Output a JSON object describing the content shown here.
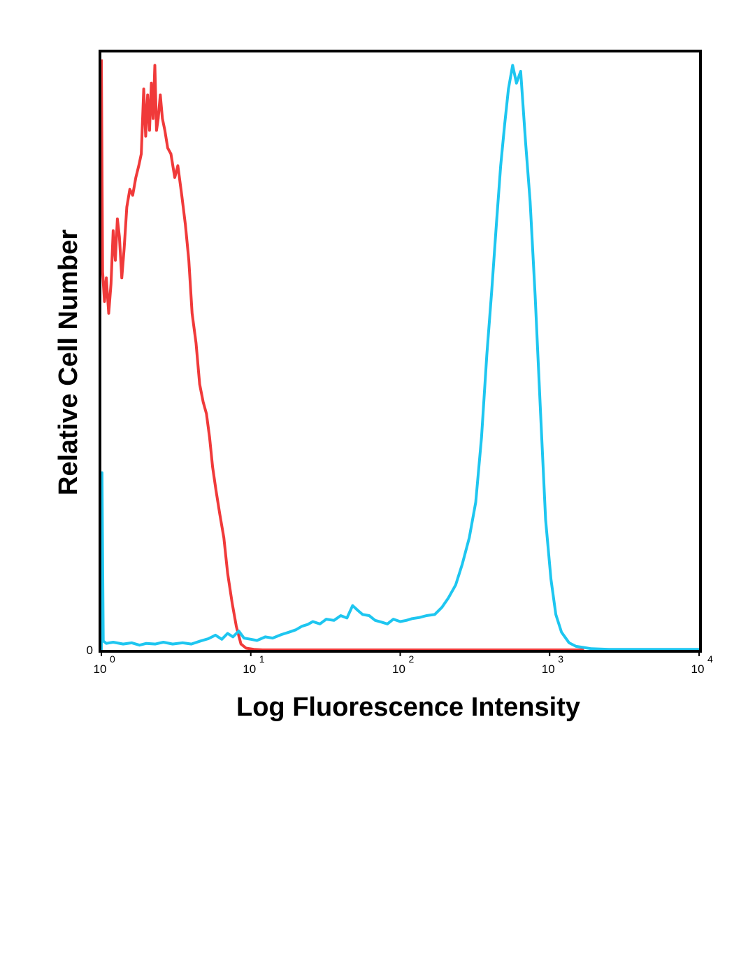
{
  "chart_data": {
    "type": "line",
    "title": "",
    "xlabel": "Log Fluorescence Intensity",
    "ylabel": "Relative Cell Number",
    "xscale": "log",
    "xlim": [
      1,
      10000
    ],
    "ylim": [
      0,
      100
    ],
    "grid": false,
    "legend": "none",
    "x_ticks": [
      {
        "base": "10",
        "exp": "0",
        "value": 1
      },
      {
        "base": "10",
        "exp": "1",
        "value": 10
      },
      {
        "base": "10",
        "exp": "2",
        "value": 100
      },
      {
        "base": "10",
        "exp": "3",
        "value": 1000
      },
      {
        "base": "10",
        "exp": "4",
        "value": 10000
      }
    ],
    "y_ticks": [
      {
        "label": "0",
        "value": 0
      }
    ],
    "series": [
      {
        "color": "#f03a3a",
        "points": [
          [
            1.0,
            100
          ],
          [
            1.02,
            64
          ],
          [
            1.05,
            59
          ],
          [
            1.08,
            63
          ],
          [
            1.12,
            57
          ],
          [
            1.16,
            62
          ],
          [
            1.2,
            71
          ],
          [
            1.24,
            66
          ],
          [
            1.28,
            73
          ],
          [
            1.32,
            70
          ],
          [
            1.37,
            63
          ],
          [
            1.42,
            68
          ],
          [
            1.48,
            75
          ],
          [
            1.55,
            78
          ],
          [
            1.62,
            77
          ],
          [
            1.7,
            80
          ],
          [
            1.78,
            82
          ],
          [
            1.85,
            84
          ],
          [
            1.92,
            95
          ],
          [
            1.98,
            87
          ],
          [
            2.04,
            94
          ],
          [
            2.1,
            88
          ],
          [
            2.16,
            96
          ],
          [
            2.22,
            90
          ],
          [
            2.28,
            99
          ],
          [
            2.34,
            88
          ],
          [
            2.4,
            90
          ],
          [
            2.48,
            94
          ],
          [
            2.56,
            90
          ],
          [
            2.66,
            88
          ],
          [
            2.78,
            85
          ],
          [
            2.92,
            84
          ],
          [
            3.1,
            80
          ],
          [
            3.25,
            82
          ],
          [
            3.45,
            77
          ],
          [
            3.65,
            72
          ],
          [
            3.85,
            66
          ],
          [
            4.05,
            57
          ],
          [
            4.3,
            52
          ],
          [
            4.55,
            45
          ],
          [
            4.8,
            42
          ],
          [
            5.05,
            40
          ],
          [
            5.3,
            36
          ],
          [
            5.55,
            31
          ],
          [
            5.85,
            27
          ],
          [
            6.2,
            23
          ],
          [
            6.6,
            19
          ],
          [
            7.0,
            13
          ],
          [
            7.5,
            8
          ],
          [
            8.0,
            4
          ],
          [
            8.6,
            1
          ],
          [
            9.3,
            0.3
          ],
          [
            10.5,
            0.1
          ],
          [
            12,
            0
          ],
          [
            30,
            0
          ],
          [
            100,
            0
          ],
          [
            500,
            0
          ],
          [
            1700,
            0
          ]
        ]
      },
      {
        "color": "#1ec6f0",
        "points": [
          [
            1.0,
            0
          ],
          [
            1.01,
            30
          ],
          [
            1.03,
            1.5
          ],
          [
            1.08,
            1.1
          ],
          [
            1.2,
            1.3
          ],
          [
            1.4,
            1.0
          ],
          [
            1.6,
            1.2
          ],
          [
            1.8,
            0.8
          ],
          [
            2.0,
            1.1
          ],
          [
            2.3,
            1.0
          ],
          [
            2.6,
            1.3
          ],
          [
            3.0,
            1.0
          ],
          [
            3.5,
            1.2
          ],
          [
            4.0,
            1.0
          ],
          [
            4.6,
            1.5
          ],
          [
            5.2,
            1.9
          ],
          [
            5.8,
            2.5
          ],
          [
            6.4,
            1.8
          ],
          [
            7.0,
            2.8
          ],
          [
            7.6,
            2.2
          ],
          [
            8.3,
            3.2
          ],
          [
            9.0,
            2.0
          ],
          [
            10.0,
            1.8
          ],
          [
            11.0,
            1.6
          ],
          [
            12.5,
            2.2
          ],
          [
            14.0,
            2.0
          ],
          [
            16.0,
            2.6
          ],
          [
            18.0,
            3.0
          ],
          [
            20.0,
            3.4
          ],
          [
            22.0,
            4.0
          ],
          [
            24.0,
            4.3
          ],
          [
            26.0,
            4.8
          ],
          [
            29.0,
            4.4
          ],
          [
            32.0,
            5.2
          ],
          [
            36.0,
            5.0
          ],
          [
            40.0,
            5.8
          ],
          [
            44.0,
            5.4
          ],
          [
            48.0,
            7.5
          ],
          [
            52.0,
            6.7
          ],
          [
            56.0,
            6.0
          ],
          [
            62.0,
            5.8
          ],
          [
            68.0,
            5.0
          ],
          [
            75.0,
            4.7
          ],
          [
            82.0,
            4.4
          ],
          [
            90.0,
            5.2
          ],
          [
            100,
            4.8
          ],
          [
            110,
            5.0
          ],
          [
            120,
            5.3
          ],
          [
            135,
            5.5
          ],
          [
            150,
            5.8
          ],
          [
            170,
            6.0
          ],
          [
            190,
            7.2
          ],
          [
            210,
            8.8
          ],
          [
            235,
            11.0
          ],
          [
            260,
            14.5
          ],
          [
            290,
            19.0
          ],
          [
            320,
            25.0
          ],
          [
            350,
            36.0
          ],
          [
            380,
            50.0
          ],
          [
            410,
            61.0
          ],
          [
            440,
            72.0
          ],
          [
            470,
            82.0
          ],
          [
            500,
            89.0
          ],
          [
            530,
            95.0
          ],
          [
            565,
            99.0
          ],
          [
            600,
            96.0
          ],
          [
            640,
            98.0
          ],
          [
            690,
            86.0
          ],
          [
            740,
            76.0
          ],
          [
            800,
            60.0
          ],
          [
            870,
            40.0
          ],
          [
            940,
            22.0
          ],
          [
            1020,
            12.0
          ],
          [
            1100,
            6.0
          ],
          [
            1200,
            3.0
          ],
          [
            1350,
            1.2
          ],
          [
            1500,
            0.6
          ],
          [
            1700,
            0.4
          ],
          [
            1900,
            0.2
          ],
          [
            2500,
            0.1
          ],
          [
            5000,
            0.1
          ],
          [
            10000,
            0.1
          ]
        ]
      }
    ]
  }
}
